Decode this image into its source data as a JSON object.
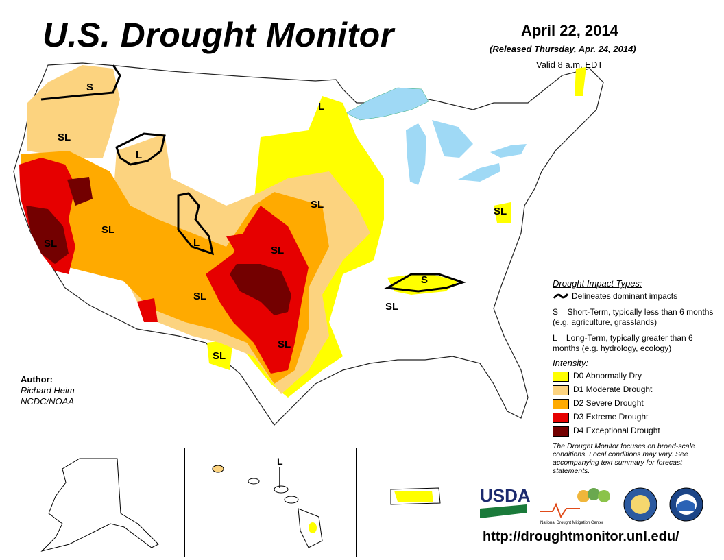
{
  "header": {
    "title": "U.S. Drought Monitor",
    "date": "April 22, 2014",
    "released": "(Released Thursday, Apr. 24, 2014)",
    "valid": "Valid 8 a.m. EDT"
  },
  "author": {
    "label": "Author:",
    "name": "Richard Heim",
    "org": "NCDC/NOAA"
  },
  "legend": {
    "impact_title": "Drought Impact Types:",
    "impact_line": "Delineates dominant impacts",
    "short_term": "S = Short-Term, typically less than 6 months (e.g. agriculture, grasslands)",
    "long_term": "L = Long-Term, typically greater than 6 months (e.g. hydrology, ecology)",
    "intensity_title": "Intensity:",
    "categories": [
      {
        "label": "D0 Abnormally Dry",
        "color": "#ffff00"
      },
      {
        "label": "D1 Moderate Drought",
        "color": "#fcd37f"
      },
      {
        "label": "D2 Severe Drought",
        "color": "#ffaa00"
      },
      {
        "label": "D3 Extreme Drought",
        "color": "#e60000"
      },
      {
        "label": "D4 Exceptional Drought",
        "color": "#730000"
      }
    ]
  },
  "note": "The Drought Monitor focuses on broad-scale conditions. Local conditions may vary. See accompanying text summary for forecast statements.",
  "map_labels": {
    "or": "S",
    "ne_or": "SL",
    "id": "L",
    "ca": "SL",
    "nv": "SL",
    "ut": "L",
    "nd": "L",
    "ne": "SL",
    "ks": "SL",
    "nm": "SL",
    "tx": "SL",
    "tx_w": "SL",
    "pa": "SL",
    "tn": "S",
    "ms": "SL",
    "hi": "L"
  },
  "logos": {
    "usda": "USDA",
    "ndmc": "National Drought Mitigation Center"
  },
  "url": "http://droughtmonitor.unl.edu/",
  "colors": {
    "water": "#9fd9f5",
    "d0": "#ffff00",
    "d1": "#fcd37f",
    "d2": "#ffaa00",
    "d3": "#e60000",
    "d4": "#730000"
  }
}
